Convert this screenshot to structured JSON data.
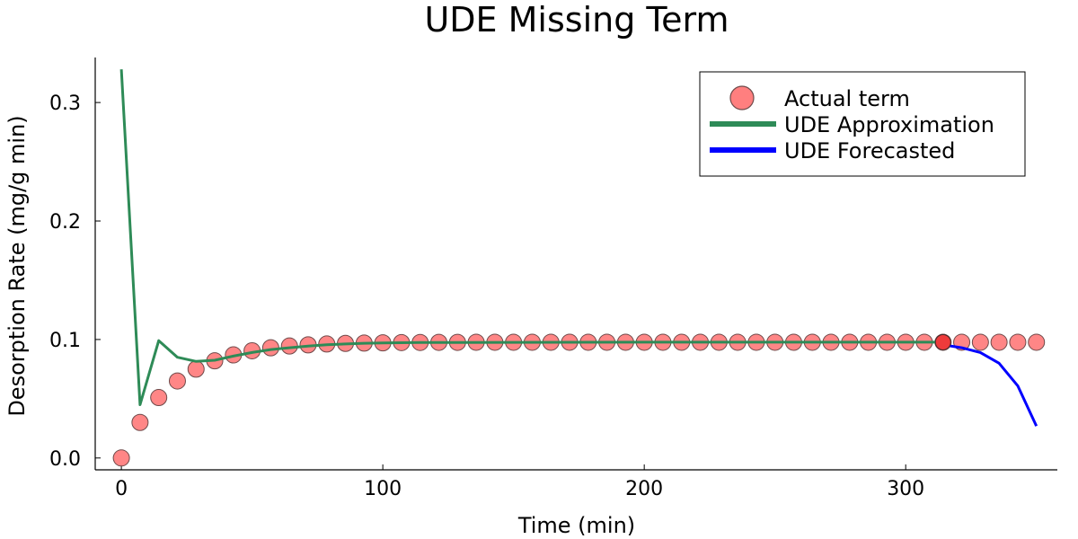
{
  "chart_data": {
    "type": "line",
    "title": "UDE Missing Term",
    "xlabel": "Time (min)",
    "ylabel": "Desorption Rate (mg/g min)",
    "xlim": [
      -10,
      358
    ],
    "ylim": [
      -0.01,
      0.338
    ],
    "xticks": [
      0,
      100,
      200,
      300
    ],
    "xtick_labels": [
      "0",
      "100",
      "200",
      "300"
    ],
    "yticks": [
      0.0,
      0.1,
      0.2,
      0.3
    ],
    "ytick_labels": [
      "0.0",
      "0.1",
      "0.2",
      "0.3"
    ],
    "grid": false,
    "legend_position": "top-right",
    "series": [
      {
        "name": "Actual term",
        "kind": "scatter",
        "color": "#ff7f7f",
        "x": [
          0,
          7.14,
          14.29,
          21.43,
          28.57,
          35.71,
          42.86,
          50,
          57.14,
          64.29,
          71.43,
          78.57,
          85.71,
          92.86,
          100,
          107.14,
          114.29,
          121.43,
          128.57,
          135.71,
          142.86,
          150,
          157.14,
          164.29,
          171.43,
          178.57,
          185.71,
          192.86,
          200,
          207.14,
          214.29,
          221.43,
          228.57,
          235.71,
          242.86,
          250,
          257.14,
          264.29,
          271.43,
          278.57,
          285.71,
          292.86,
          300,
          307.14,
          314.29,
          321.43,
          328.57,
          335.71,
          342.86,
          350
        ],
        "y": [
          0.0,
          0.03,
          0.051,
          0.065,
          0.075,
          0.082,
          0.087,
          0.0905,
          0.093,
          0.0945,
          0.0955,
          0.0962,
          0.0967,
          0.097,
          0.0972,
          0.0974,
          0.0975,
          0.0976,
          0.0976,
          0.0977,
          0.0977,
          0.0977,
          0.0977,
          0.0977,
          0.0977,
          0.0977,
          0.0977,
          0.0977,
          0.0977,
          0.0977,
          0.0977,
          0.0977,
          0.0977,
          0.0977,
          0.0977,
          0.0977,
          0.0977,
          0.0977,
          0.0977,
          0.0977,
          0.0977,
          0.0977,
          0.0977,
          0.0977,
          0.0977,
          0.0977,
          0.0977,
          0.0977,
          0.0977,
          0.0977
        ]
      },
      {
        "name": "UDE Approximation",
        "kind": "line",
        "color": "#2e8b57",
        "x": [
          0,
          7.14,
          14.29,
          21.43,
          28.57,
          35.71,
          42.86,
          50,
          57.14,
          64.29,
          71.43,
          78.57,
          85.71,
          92.86,
          100,
          114.29,
          128.57,
          150,
          200,
          250,
          300,
          307.14,
          314.29
        ],
        "y": [
          0.328,
          0.045,
          0.099,
          0.085,
          0.0815,
          0.0825,
          0.086,
          0.089,
          0.0915,
          0.093,
          0.0945,
          0.0955,
          0.0962,
          0.0968,
          0.0971,
          0.0974,
          0.0975,
          0.0976,
          0.0977,
          0.0977,
          0.0977,
          0.0977,
          0.0977
        ]
      },
      {
        "name": "UDE Forecasted",
        "kind": "line",
        "color": "#0000ff",
        "x": [
          314.29,
          321.43,
          328.57,
          335.71,
          342.86,
          350
        ],
        "y": [
          0.0955,
          0.093,
          0.089,
          0.08,
          0.061,
          0.027
        ]
      }
    ]
  }
}
